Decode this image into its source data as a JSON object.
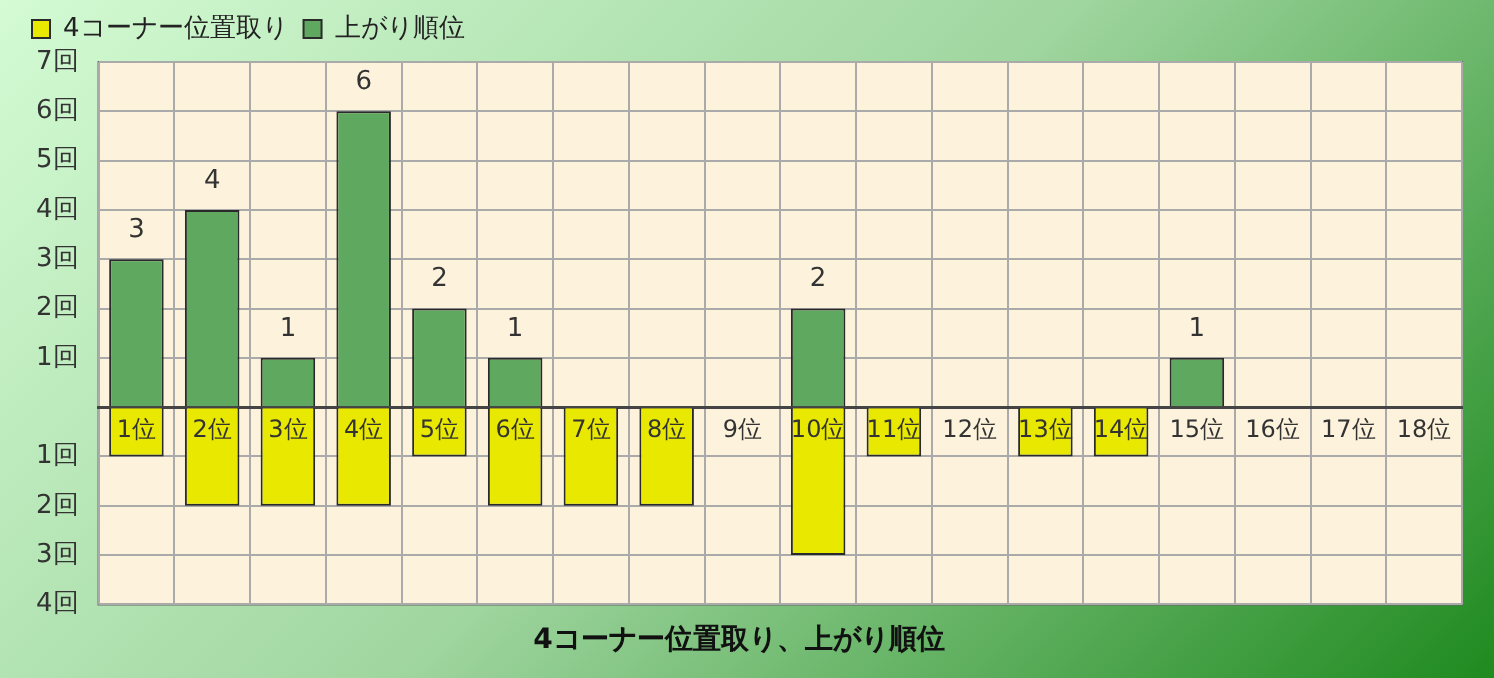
{
  "chart_data": {
    "type": "bar",
    "title": "4コーナー位置取り、上がり順位",
    "stacked": true,
    "legend": "top",
    "grid": true,
    "categories": [
      "1位",
      "2位",
      "3位",
      "4位",
      "5位",
      "6位",
      "7位",
      "8位",
      "9位",
      "10位",
      "11位",
      "12位",
      "13位",
      "14位",
      "15位",
      "16位",
      "17位",
      "18位"
    ],
    "series": [
      {
        "name": "4コーナー位置取り",
        "color": "#e8e800",
        "values": [
          -1,
          -2,
          -2,
          -2,
          -1,
          -2,
          -2,
          -2,
          null,
          -3,
          -1,
          null,
          -1,
          -1,
          null,
          null,
          null,
          null
        ]
      },
      {
        "name": "上がり順位",
        "color": "#5fa85f",
        "values": [
          3,
          4,
          1,
          6,
          2,
          1,
          null,
          null,
          null,
          2,
          null,
          null,
          null,
          null,
          1,
          null,
          null,
          null
        ],
        "value_labels": [
          "3",
          "4",
          "1",
          "6",
          "2",
          "1",
          null,
          null,
          null,
          "2",
          null,
          null,
          null,
          null,
          "1",
          null,
          null,
          null
        ]
      }
    ],
    "ylim": [
      -4,
      7
    ],
    "yticks": [
      {
        "value": 7,
        "label": "7回"
      },
      {
        "value": 6,
        "label": "6回"
      },
      {
        "value": 5,
        "label": "5回"
      },
      {
        "value": 4,
        "label": "4回"
      },
      {
        "value": 3,
        "label": "3回"
      },
      {
        "value": 2,
        "label": "2回"
      },
      {
        "value": 1,
        "label": "1回"
      },
      {
        "value": 0,
        "label": null
      },
      {
        "value": -1,
        "label": "1回"
      },
      {
        "value": -2,
        "label": "2回"
      },
      {
        "value": -3,
        "label": "3回"
      },
      {
        "value": -4,
        "label": "4回"
      }
    ]
  }
}
